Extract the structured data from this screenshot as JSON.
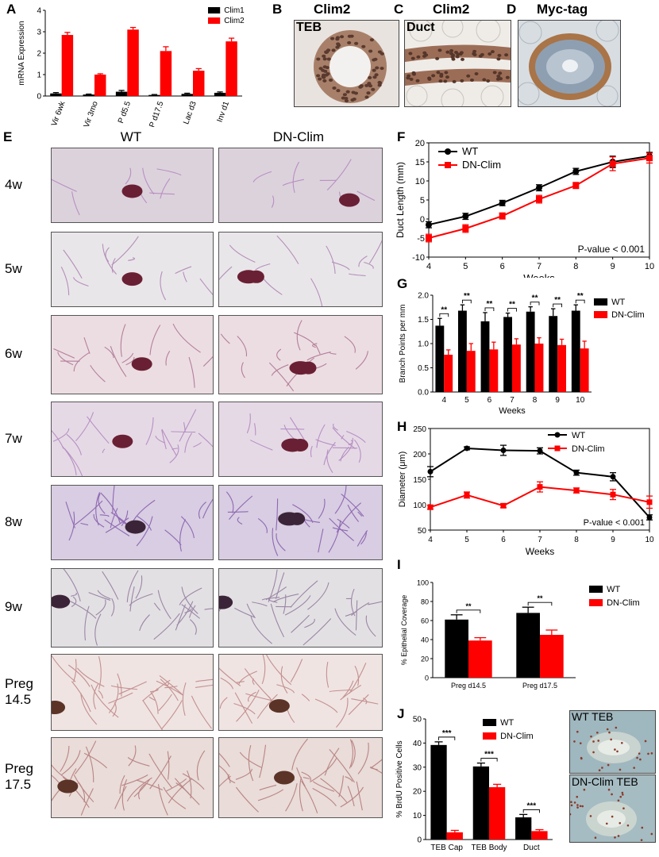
{
  "panels": {
    "A": {
      "letter": "A"
    },
    "B": {
      "letter": "B",
      "title": "Clim2",
      "inner": "TEB"
    },
    "C": {
      "letter": "C",
      "title": "Clim2",
      "inner": "Duct"
    },
    "D": {
      "letter": "D",
      "title": "Myc-tag"
    },
    "E": {
      "letter": "E",
      "col_wt": "WT",
      "col_dn": "DN-Clim",
      "rows": [
        "4w",
        "5w",
        "6w",
        "7w",
        "8w",
        "9w",
        "Preg\n14.5",
        "Preg\n17.5"
      ]
    },
    "F": {
      "letter": "F"
    },
    "G": {
      "letter": "G"
    },
    "H": {
      "letter": "H"
    },
    "I": {
      "letter": "I"
    },
    "J": {
      "letter": "J",
      "img1": "WT TEB",
      "img2": "DN-Clim TEB"
    }
  },
  "chart_data": [
    {
      "id": "A",
      "type": "bar",
      "ylabel": "mRNA Expression",
      "ylim": [
        0,
        4
      ],
      "yticks": [
        0,
        1,
        2,
        3,
        4
      ],
      "categories": [
        "Vir 6wk",
        "Vir 3mo",
        "P d5.5",
        "P d17.5",
        "Lac d3",
        "Inv d1"
      ],
      "series": [
        {
          "name": "Clim1",
          "color": "#000000",
          "values": [
            0.12,
            0.07,
            0.2,
            0.05,
            0.1,
            0.15
          ],
          "err": [
            0.04,
            0.02,
            0.06,
            0.02,
            0.03,
            0.04
          ]
        },
        {
          "name": "Clim2",
          "color": "#ff0000",
          "values": [
            2.85,
            1.0,
            3.1,
            2.1,
            1.18,
            2.55
          ],
          "err": [
            0.12,
            0.04,
            0.1,
            0.2,
            0.1,
            0.15
          ]
        }
      ],
      "legend": "top-right"
    },
    {
      "id": "F",
      "type": "line",
      "xlabel": "Weeks",
      "ylabel": "Duct Length (mm)",
      "xlim": [
        4,
        10
      ],
      "ylim": [
        -10,
        20
      ],
      "xticks": [
        4,
        5,
        6,
        7,
        8,
        9,
        10
      ],
      "yticks": [
        -10,
        -5,
        0,
        5,
        10,
        15,
        20
      ],
      "annotation": "P-value < 0.001",
      "series": [
        {
          "name": "WT",
          "color": "#000000",
          "x": [
            4,
            5,
            6,
            7,
            8,
            9,
            10
          ],
          "y": [
            -1.5,
            0.7,
            4.2,
            8.2,
            12.5,
            15.0,
            16.5
          ],
          "err": [
            0.8,
            0.8,
            0.7,
            0.8,
            0.8,
            1.5,
            1.0
          ]
        },
        {
          "name": "DN-Clim",
          "color": "#ff0000",
          "x": [
            4,
            5,
            6,
            7,
            8,
            9,
            10
          ],
          "y": [
            -5.0,
            -2.5,
            0.8,
            5.2,
            8.8,
            14.5,
            16.0
          ],
          "err": [
            1.0,
            1.0,
            0.8,
            1.0,
            0.8,
            1.8,
            1.3
          ]
        }
      ],
      "legend": "top-left"
    },
    {
      "id": "G",
      "type": "bar",
      "xlabel": "Weeks",
      "ylabel": "Branch Points per mm",
      "ylim": [
        0,
        2.0
      ],
      "yticks": [
        "0.0",
        "0.5",
        "1.0",
        "1.5",
        "2.0"
      ],
      "categories": [
        "4",
        "5",
        "6",
        "7",
        "8",
        "9",
        "10"
      ],
      "series": [
        {
          "name": "WT",
          "color": "#000000",
          "values": [
            1.37,
            1.68,
            1.46,
            1.55,
            1.66,
            1.57,
            1.68
          ],
          "err": [
            0.15,
            0.12,
            0.18,
            0.08,
            0.1,
            0.15,
            0.12
          ]
        },
        {
          "name": "DN-Clim",
          "color": "#ff0000",
          "values": [
            0.77,
            0.85,
            0.88,
            0.98,
            1.0,
            0.97,
            0.9
          ],
          "err": [
            0.1,
            0.15,
            0.15,
            0.12,
            0.12,
            0.12,
            0.15
          ]
        }
      ],
      "sig": [
        "**",
        "**",
        "**",
        "**",
        "**",
        "**",
        "**"
      ],
      "legend": "top-right"
    },
    {
      "id": "H",
      "type": "line",
      "xlabel": "Weeks",
      "ylabel": "Diameter (μm)",
      "xlim": [
        4,
        10
      ],
      "ylim": [
        50,
        250
      ],
      "xticks": [
        4,
        5,
        6,
        7,
        8,
        9,
        10
      ],
      "yticks": [
        50,
        100,
        150,
        200,
        250
      ],
      "annotation": "P-value < 0.001",
      "series": [
        {
          "name": "WT",
          "color": "#000000",
          "x": [
            4,
            5,
            6,
            7,
            8,
            9,
            10
          ],
          "y": [
            165,
            211,
            207,
            206,
            163,
            155,
            75
          ],
          "err": [
            10,
            3,
            10,
            6,
            5,
            8,
            5
          ]
        },
        {
          "name": "DN-Clim",
          "color": "#ff0000",
          "x": [
            4,
            5,
            6,
            7,
            8,
            9,
            10
          ],
          "y": [
            95,
            119,
            98,
            135,
            128,
            120,
            105
          ],
          "err": [
            4,
            6,
            4,
            10,
            5,
            10,
            12
          ]
        }
      ],
      "legend": "top-right"
    },
    {
      "id": "I",
      "type": "bar",
      "ylabel": "% Epithelial Coverage",
      "ylim": [
        0,
        100
      ],
      "yticks": [
        0,
        20,
        40,
        60,
        80,
        100
      ],
      "categories": [
        "Preg d14.5",
        "Preg d17.5"
      ],
      "series": [
        {
          "name": "WT",
          "color": "#000000",
          "values": [
            61,
            68
          ],
          "err": [
            5,
            6
          ]
        },
        {
          "name": "DN-Clim",
          "color": "#ff0000",
          "values": [
            39,
            45
          ],
          "err": [
            3,
            5
          ]
        }
      ],
      "sig": [
        "**",
        "**"
      ],
      "legend": "top-right"
    },
    {
      "id": "J",
      "type": "bar",
      "ylabel": "% BrdU Positive Cells",
      "ylim": [
        0,
        50
      ],
      "yticks": [
        0,
        10,
        20,
        30,
        40,
        50
      ],
      "categories": [
        "TEB Cap",
        "TEB Body",
        "Duct"
      ],
      "series": [
        {
          "name": "WT",
          "color": "#000000",
          "values": [
            39.2,
            30.3,
            9.2
          ],
          "err": [
            1.3,
            1.4,
            1.2
          ]
        },
        {
          "name": "DN-Clim",
          "color": "#ff0000",
          "values": [
            3.0,
            21.7,
            3.5
          ],
          "err": [
            0.8,
            1.2,
            0.6
          ]
        }
      ],
      "sig": [
        "***",
        "***",
        "***"
      ],
      "legend": "top-right"
    }
  ]
}
